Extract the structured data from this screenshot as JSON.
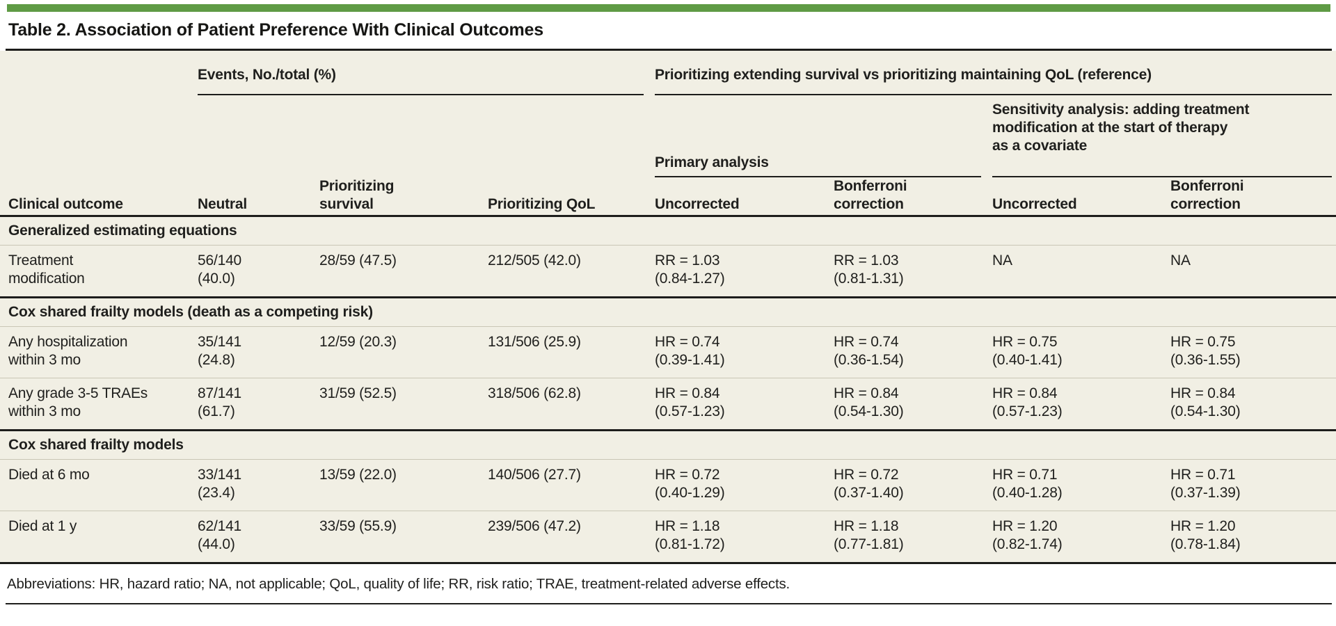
{
  "title": "Table 2. Association of Patient Preference With Clinical Outcomes",
  "colors": {
    "accent_green": "#5f9b45",
    "table_background": "#f1efe4",
    "heavy_rule": "#1d1d1b",
    "light_rule": "#c9c6b5",
    "text": "#1f1f1d"
  },
  "table": {
    "group_headers": {
      "events": "Events, No./total (%)",
      "comparison": "Prioritizing extending survival vs prioritizing maintaining QoL (reference)",
      "primary": "Primary analysis",
      "sensitivity": "Sensitivity analysis: adding treatment\nmodification at the start of therapy\nas a covariate"
    },
    "columns": [
      "Clinical outcome",
      "Neutral",
      "Prioritizing\nsurvival",
      "Prioritizing QoL",
      "Uncorrected",
      "Bonferroni\ncorrection",
      "Uncorrected",
      "Bonferroni\ncorrection"
    ],
    "sections": [
      {
        "label": "Generalized estimating equations",
        "rows": [
          {
            "cells": [
              "Treatment\nmodification",
              "56/140\n(40.0)",
              "28/59 (47.5)",
              "212/505 (42.0)",
              "RR = 1.03\n(0.84-1.27)",
              "RR = 1.03\n(0.81-1.31)",
              "NA",
              "NA"
            ]
          }
        ]
      },
      {
        "label": "Cox shared frailty models (death as a competing risk)",
        "rows": [
          {
            "cells": [
              "Any hospitalization\nwithin 3 mo",
              "35/141\n(24.8)",
              "12/59 (20.3)",
              "131/506 (25.9)",
              "HR = 0.74\n(0.39-1.41)",
              "HR = 0.74\n(0.36-1.54)",
              "HR = 0.75\n(0.40-1.41)",
              "HR = 0.75\n(0.36-1.55)"
            ]
          },
          {
            "cells": [
              "Any grade 3-5 TRAEs\nwithin 3 mo",
              "87/141\n(61.7)",
              "31/59 (52.5)",
              "318/506 (62.8)",
              "HR = 0.84\n(0.57-1.23)",
              "HR = 0.84\n(0.54-1.30)",
              "HR = 0.84\n(0.57-1.23)",
              "HR = 0.84\n(0.54-1.30)"
            ]
          }
        ]
      },
      {
        "label": "Cox shared frailty models",
        "rows": [
          {
            "cells": [
              "Died at 6 mo",
              "33/141\n(23.4)",
              "13/59 (22.0)",
              "140/506 (27.7)",
              "HR = 0.72\n(0.40-1.29)",
              "HR = 0.72\n(0.37-1.40)",
              "HR = 0.71\n(0.40-1.28)",
              "HR = 0.71\n(0.37-1.39)"
            ]
          },
          {
            "cells": [
              "Died at 1 y",
              "62/141\n(44.0)",
              "33/59 (55.9)",
              "239/506 (47.2)",
              "HR = 1.18\n(0.81-1.72)",
              "HR = 1.18\n(0.77-1.81)",
              "HR = 1.20\n(0.82-1.74)",
              "HR = 1.20\n(0.78-1.84)"
            ]
          }
        ]
      }
    ]
  },
  "footnote": "Abbreviations: HR, hazard ratio; NA, not applicable; QoL, quality of life; RR, risk ratio; TRAE, treatment-related adverse effects."
}
